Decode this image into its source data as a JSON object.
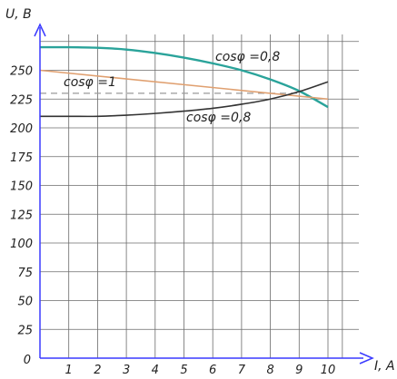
{
  "chart_data": {
    "type": "line",
    "xlabel": "I, A",
    "ylabel": "U, B",
    "origin_label": "0",
    "xlim": [
      0,
      10.5
    ],
    "ylim": [
      0,
      280
    ],
    "x_ticks": [
      1,
      2,
      3,
      4,
      5,
      6,
      7,
      8,
      9,
      10
    ],
    "y_ticks": [
      25,
      50,
      75,
      100,
      125,
      150,
      175,
      200,
      225,
      250
    ],
    "grid": true,
    "reference_line": {
      "y": 230,
      "style": "dashed"
    },
    "series": [
      {
        "name": "cosφ =0,8",
        "color": "#2aa39a",
        "x": [
          0,
          1,
          2,
          3,
          4,
          5,
          6,
          7,
          8,
          9,
          10
        ],
        "y": [
          270,
          270,
          269.5,
          268,
          265,
          261,
          256,
          250,
          242,
          232,
          218
        ]
      },
      {
        "name": "cosφ =1",
        "color": "#e0a070",
        "x": [
          0,
          10
        ],
        "y": [
          250,
          225
        ]
      },
      {
        "name": "cosφ =0,8",
        "color": "#333333",
        "x": [
          0,
          1,
          2,
          3,
          4,
          5,
          6,
          7,
          8,
          9,
          10
        ],
        "y": [
          210,
          210,
          210,
          211,
          212.5,
          214.5,
          217,
          220.5,
          225,
          231.5,
          240
        ]
      }
    ]
  }
}
